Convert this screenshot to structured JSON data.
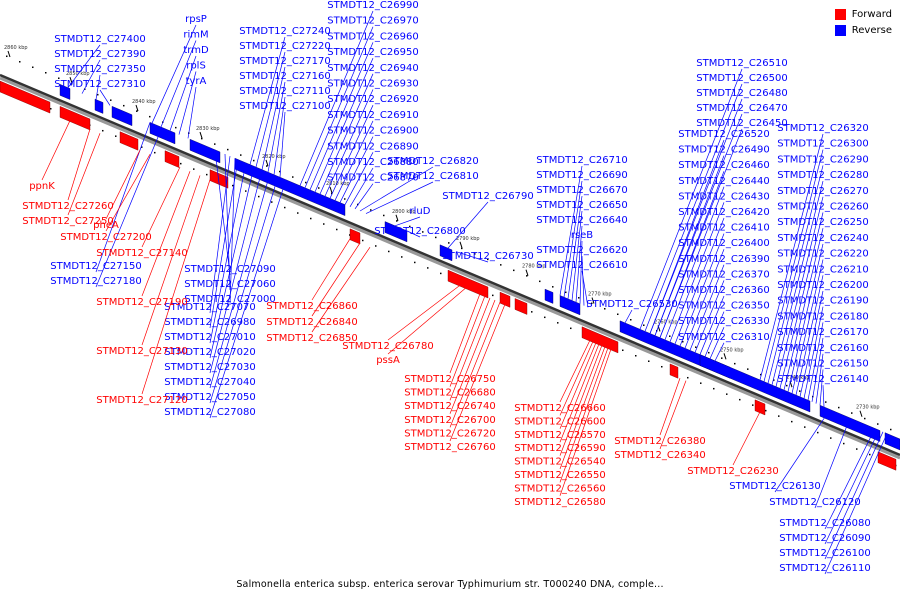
{
  "legend": {
    "forward_label": "Forward",
    "reverse_label": "Reverse",
    "forward_color": "#ff0000",
    "reverse_color": "#0000ff"
  },
  "caption": "Salmonella enterica subsp. enterica serovar Typhimurium str. T000240 DNA, comple...",
  "axis_ticks": [
    "2860 kbp",
    "2850 kbp",
    "2840 kbp",
    "2830 kbp",
    "2820 kbp",
    "2810 kbp",
    "2800 kbp",
    "2790 kbp",
    "2780 kbp",
    "2770 kbp",
    "2760 kbp",
    "2750 kbp",
    "2740 kbp",
    "2730 kbp"
  ],
  "forward_genes": [
    "ppnK",
    "STMDT12_C27260",
    "STMDT12_C27250",
    "pheA",
    "STMDT12_C27200",
    "STMDT12_C27140",
    "STMDT12_C27190",
    "STMDT12_C27130",
    "STMDT12_C27120",
    "STMDT12_C26860",
    "STMDT12_C26840",
    "STMDT12_C26850",
    "STMDT12_C26780",
    "pssA",
    "STMDT12_C26750",
    "STMDT12_C26680",
    "STMDT12_C26740",
    "STMDT12_C26700",
    "STMDT12_C26720",
    "STMDT12_C26760",
    "STMDT12_C26660",
    "STMDT12_C26600",
    "STMDT12_C26570",
    "STMDT12_C26590",
    "STMDT12_C26540",
    "STMDT12_C26550",
    "STMDT12_C26560",
    "STMDT12_C26580",
    "STMDT12_C26380",
    "STMDT12_C26340",
    "STMDT12_C26230"
  ],
  "reverse_genes_upper": [
    "STMDT12_C27400",
    "STMDT12_C27390",
    "STMDT12_C27350",
    "STMDT12_C27310",
    "rpsP",
    "rimM",
    "trmD",
    "rplS",
    "tyrA",
    "STMDT12_C27240",
    "STMDT12_C27220",
    "STMDT12_C27170",
    "STMDT12_C27160",
    "STMDT12_C27110",
    "STMDT12_C27100",
    "STMDT12_C26990",
    "STMDT12_C26970",
    "STMDT12_C26960",
    "STMDT12_C26950",
    "STMDT12_C26940",
    "STMDT12_C26930",
    "STMDT12_C26920",
    "STMDT12_C26910",
    "STMDT12_C26900",
    "STMDT12_C26890",
    "STMDT12_C26880",
    "STMDT12_C26870",
    "STMDT12_C26820",
    "STMDT12_C26810",
    "rluD",
    "STMDT12_C26800",
    "STMDT12_C26790",
    "STMDT12_C26730",
    "STMDT12_C26710",
    "STMDT12_C26690",
    "STMDT12_C26670",
    "STMDT12_C26650",
    "STMDT12_C26640",
    "rseB",
    "STMDT12_C26620",
    "STMDT12_C26610",
    "STMDT12_C26530",
    "STMDT12_C26510",
    "STMDT12_C26500",
    "STMDT12_C26480",
    "STMDT12_C26470",
    "STMDT12_C26450",
    "STMDT12_C26520",
    "STMDT12_C26490",
    "STMDT12_C26460",
    "STMDT12_C26440",
    "STMDT12_C26430",
    "STMDT12_C26420",
    "STMDT12_C26410",
    "STMDT12_C26400",
    "STMDT12_C26390",
    "STMDT12_C26370",
    "STMDT12_C26360",
    "STMDT12_C26350",
    "STMDT12_C26330",
    "STMDT12_C26310",
    "STMDT12_C26320",
    "STMDT12_C26300",
    "STMDT12_C26290",
    "STMDT12_C26280",
    "STMDT12_C26270",
    "STMDT12_C26260",
    "STMDT12_C26250",
    "STMDT12_C26240",
    "STMDT12_C26220",
    "STMDT12_C26210",
    "STMDT12_C26200",
    "STMDT12_C26190",
    "STMDT12_C26180",
    "STMDT12_C26170",
    "STMDT12_C26160",
    "STMDT12_C26150",
    "STMDT12_C26140"
  ],
  "reverse_genes_lower": [
    "STMDT12_C27150",
    "STMDT12_C27180",
    "STMDT12_C27090",
    "STMDT12_C27060",
    "STMDT12_C27000",
    "STMDT12_C27070",
    "STMDT12_C26980",
    "STMDT12_C27010",
    "STMDT12_C27020",
    "STMDT12_C27030",
    "STMDT12_C27040",
    "STMDT12_C27050",
    "STMDT12_C27080",
    "STMDT12_C26130",
    "STMDT12_C26120",
    "STMDT12_C26080",
    "STMDT12_C26090",
    "STMDT12_C26100",
    "STMDT12_C26110"
  ]
}
